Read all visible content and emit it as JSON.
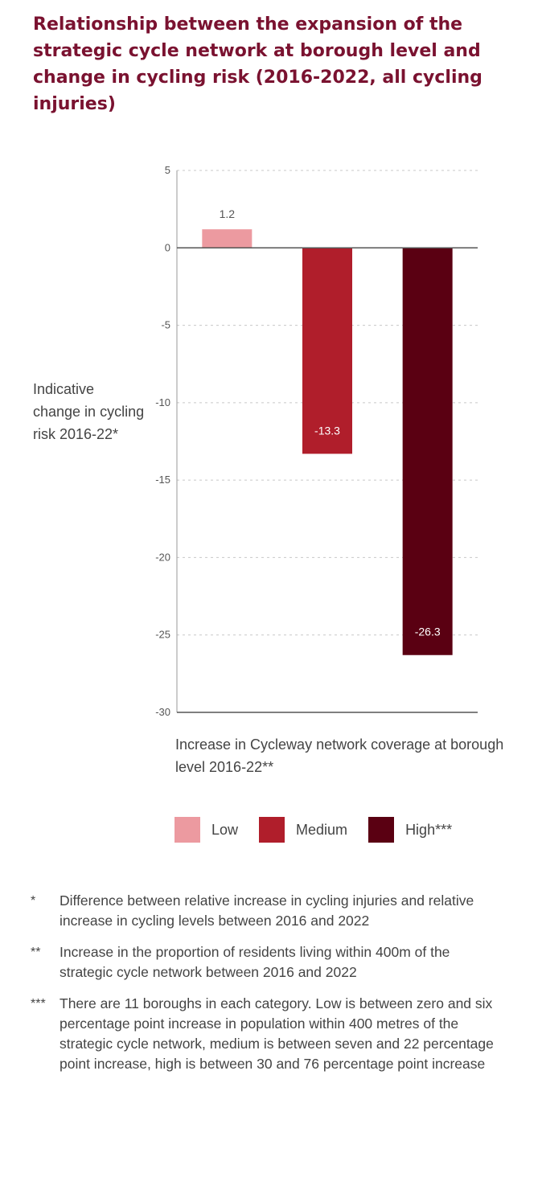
{
  "title": "Relationship between the expansion of the strategic cycle network at borough level and change in cycling risk (2016-2022, all cycling injuries)",
  "chart_data": {
    "type": "bar",
    "categories": [
      "Low",
      "Medium",
      "High***"
    ],
    "values": [
      1.2,
      -13.3,
      -26.3
    ],
    "value_labels": [
      "1.2",
      "-13.3",
      "-26.3"
    ],
    "colors": [
      "#ec9aa0",
      "#b01e2b",
      "#5a0012"
    ],
    "ylabel": "Indicative change in cycling risk 2016-22*",
    "xlabel": "Increase in Cycleway network coverage at borough level 2016-22**",
    "ylim": [
      -30,
      5
    ],
    "yticks": [
      5,
      0,
      -5,
      -10,
      -15,
      -20,
      -25,
      -30
    ],
    "ytick_labels": [
      "5",
      "0",
      "-5",
      "-10",
      "-15",
      "-20",
      "-25",
      "-30"
    ],
    "grid": true,
    "legend_position": "bottom"
  },
  "legend": [
    {
      "label": "Low",
      "color": "#ec9aa0"
    },
    {
      "label": "Medium",
      "color": "#b01e2b"
    },
    {
      "label": "High***",
      "color": "#5a0012"
    }
  ],
  "notes": [
    {
      "mark": "*",
      "text": "Difference between relative increase in cycling injuries and relative increase in cycling levels between 2016 and 2022"
    },
    {
      "mark": "**",
      "text": "Increase in the proportion of residents living within 400m of the strategic cycle network between 2016 and 2022"
    },
    {
      "mark": "***",
      "text": "There are 11 boroughs in each category. Low is between zero and six percentage point increase in population within 400 metres of the strategic cycle network, medium is between seven and 22 percentage point increase, high is between 30 and 76 percentage point increase"
    }
  ]
}
